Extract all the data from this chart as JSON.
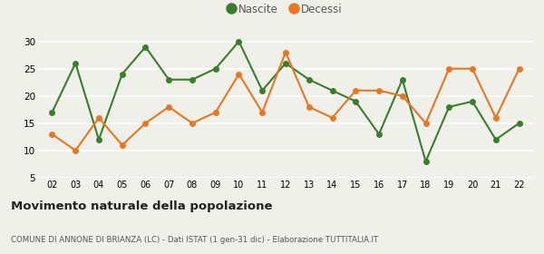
{
  "years": [
    2,
    3,
    4,
    5,
    6,
    7,
    8,
    9,
    10,
    11,
    12,
    13,
    14,
    15,
    16,
    17,
    18,
    19,
    20,
    21,
    22
  ],
  "nascite": [
    17,
    26,
    12,
    24,
    29,
    23,
    23,
    25,
    30,
    21,
    26,
    23,
    21,
    19,
    13,
    23,
    8,
    18,
    19,
    12,
    15
  ],
  "decessi": [
    13,
    10,
    16,
    11,
    15,
    18,
    15,
    17,
    24,
    17,
    28,
    18,
    16,
    21,
    21,
    20,
    15,
    25,
    25,
    16,
    25
  ],
  "nascite_color": "#3a7d2c",
  "decessi_color": "#e87722",
  "background_color": "#f0f0eb",
  "grid_color": "#ffffff",
  "title": "Movimento naturale della popolazione",
  "subtitle": "COMUNE DI ANNONE DI BRIANZA (LC) - Dati ISTAT (1 gen-31 dic) - Elaborazione TUTTITALIA.IT",
  "legend_nascite": "Nascite",
  "legend_decessi": "Decessi",
  "ylim_min": 5,
  "ylim_max": 32,
  "yticks": [
    5,
    10,
    15,
    20,
    25,
    30
  ],
  "marker_size": 5,
  "line_width": 1.5
}
